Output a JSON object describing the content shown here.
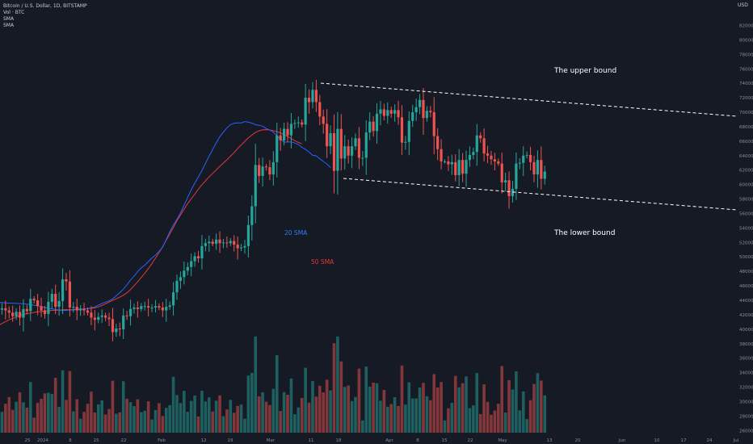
{
  "header": {
    "title": "Bitcoin / U.S. Dollar, 1D, BITSTAMP",
    "vol": "Vol · BTC",
    "sma1": "SMA",
    "sma2": "SMA",
    "currency": "USD"
  },
  "chart_data": {
    "type": "candlestick",
    "title": "Bitcoin / U.S. Dollar, 1D, BITSTAMP",
    "x_ticks": [
      "25",
      "2024",
      "8",
      "15",
      "22",
      "Feb",
      "12",
      "19",
      "Mar",
      "11",
      "18",
      "Apr",
      "8",
      "15",
      "22",
      "May",
      "13",
      "20",
      "Jun",
      "10",
      "17",
      "24",
      "Jul"
    ],
    "y_ticks": [
      "82000",
      "80000",
      "78000",
      "76000",
      "74000",
      "72000",
      "70000",
      "68000",
      "66000",
      "64000",
      "62000",
      "60000",
      "58000",
      "56000",
      "54000",
      "52000",
      "50000",
      "48000",
      "46000",
      "44000",
      "42000",
      "40000",
      "38000",
      "36000",
      "34000",
      "32000",
      "30000",
      "28000",
      "26000"
    ],
    "ylim": [
      26000,
      82000
    ],
    "closes": [
      42700,
      42900,
      42600,
      42300,
      41800,
      42400,
      41600,
      42800,
      42500,
      44200,
      44000,
      43200,
      42600,
      42100,
      43800,
      44900,
      43100,
      43900,
      46900,
      46600,
      43000,
      43100,
      42600,
      42800,
      42600,
      42300,
      41600,
      41300,
      41700,
      41900,
      41600,
      41400,
      39600,
      40100,
      40000,
      41900,
      41800,
      42800,
      43000,
      42800,
      43200,
      43200,
      43000,
      43000,
      43200,
      43000,
      42600,
      43100,
      43300,
      45100,
      46700,
      47200,
      48100,
      48600,
      49400,
      50100,
      49800,
      51500,
      51900,
      52100,
      51800,
      52400,
      51900,
      52000,
      51900,
      52200,
      51700,
      51200,
      51300,
      51500,
      54400,
      57000,
      62700,
      61200,
      62500,
      62400,
      61400,
      63100,
      66800,
      66100,
      67700,
      66800,
      68400,
      68500,
      68600,
      68300,
      72000,
      71400,
      73100,
      71400,
      69400,
      68400,
      65300,
      67100,
      61900,
      67700,
      63600,
      65300,
      64000,
      65300,
      66400,
      63700,
      63700,
      67200,
      68700,
      67400,
      69800,
      70400,
      69500,
      70300,
      69800,
      70300,
      69300,
      65800,
      65900,
      68800,
      70000,
      70700,
      71700,
      69200,
      70200,
      70000,
      66700,
      64900,
      63200,
      63200,
      62800,
      63100,
      61300,
      63400,
      61500,
      63400,
      64100,
      64500,
      66800,
      66400,
      64300,
      64000,
      63500,
      63200,
      62900,
      60300,
      60600,
      58400,
      59400,
      62900,
      63000,
      64000,
      64100,
      63100,
      61400,
      63400,
      60800,
      61800
    ],
    "sma20": [
      43700,
      43690,
      43640,
      43610,
      43600,
      43580,
      43550,
      43530,
      43480,
      43420,
      43320,
      43250,
      43120,
      43000,
      42930,
      42810,
      42740,
      42650,
      42600,
      42610,
      42650,
      42660,
      42720,
      42740,
      42780,
      42870,
      42940,
      43090,
      43330,
      43570,
      43740,
      43920,
      44190,
      44630,
      45050,
      45550,
      46130,
      46800,
      47340,
      47980,
      48490,
      48870,
      49350,
      49860,
      50260,
      50760,
      51340,
      52390,
      53500,
      54400,
      55180,
      56090,
      57150,
      58220,
      59280,
      60200,
      61050,
      61930,
      62940,
      63950,
      64830,
      65760,
      66610,
      67250,
      67850,
      68290,
      68490,
      68520,
      68530,
      68710,
      68630,
      68500,
      68290,
      68200,
      68070,
      67750,
      67560,
      67250,
      66730,
      66240,
      65870,
      65880,
      65910,
      65740,
      65530,
      65150,
      64860,
      64480,
      64050,
      63980,
      63560,
      63200,
      62850,
      62360
    ],
    "sma50": [
      40500,
      40800,
      41050,
      41300,
      41500,
      41700,
      41900,
      42050,
      42150,
      42250,
      42330,
      42400,
      42450,
      42500,
      42550,
      42600,
      42620,
      42650,
      42680,
      42700,
      42710,
      42720,
      42760,
      42790,
      42810,
      42850,
      42880,
      42950,
      43080,
      43290,
      43520,
      43750,
      43990,
      44200,
      44450,
      44700,
      45040,
      45470,
      46020,
      46560,
      47150,
      47750,
      48390,
      49100,
      49850,
      50600,
      51420,
      52300,
      53180,
      54080,
      55000,
      55800,
      56590,
      57370,
      58040,
      58680,
      59360,
      59970,
      60520,
      61060,
      61550,
      62020,
      62520,
      62980,
      63420,
      63930,
      64400,
      64980,
      65480,
      65970,
      66480,
      66840,
      67200,
      67430,
      67570,
      67590,
      67550,
      67460,
      67320,
      67140,
      66890,
      66640,
      66350,
      66070,
      65830,
      65630
    ]
  },
  "annotations": {
    "upper": "The upper bound",
    "lower": "The lower bound",
    "sma20_label": "20 SMA",
    "sma50_label": "50 SMA"
  },
  "colors": {
    "background": "#161a25",
    "up": "#26a69a",
    "down": "#ef5350",
    "sma20": "#2962ff",
    "sma50": "#e53935",
    "text": "#c9ccd4",
    "axis_text": "#8a8e99",
    "dashed": "#ffffff"
  }
}
